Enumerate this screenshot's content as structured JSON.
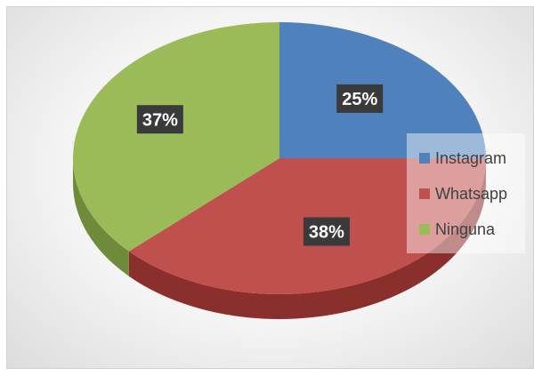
{
  "chart_data": {
    "type": "pie",
    "style": "3d",
    "categories": [
      "Instagram",
      "Whatsapp",
      "Ninguna"
    ],
    "values": [
      25,
      38,
      37
    ],
    "data_labels": [
      "25%",
      "38%",
      "37%"
    ],
    "colors": [
      "#4f81bd",
      "#c0504d",
      "#9bbb59"
    ],
    "side_colors": [
      "#385d8a",
      "#8b2f2c",
      "#6f8a3a"
    ],
    "legend": {
      "placement": "right",
      "entries": [
        "Instagram",
        "Whatsapp",
        "Ninguna"
      ]
    }
  }
}
